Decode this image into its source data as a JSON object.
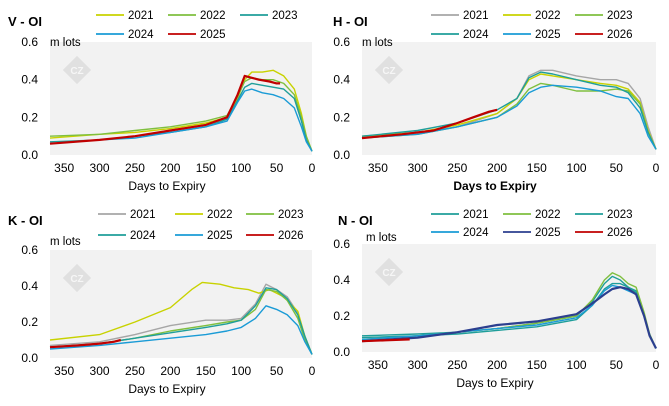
{
  "colors": {
    "2021": "#a6a6a6",
    "2022": "#c8d200",
    "2023": "#7fbf3f",
    "2024": "#1f9e9a",
    "2025": "#1a9bd6",
    "2026": "#c00000",
    "2025_v": "#c00000",
    "2025_n": "#2c3f8f",
    "2021_n": "#1f9e9a",
    "2022_n": "#7fbf3f",
    "2023_n": "#1f9e9a",
    "2024_n": "#1a9bd6",
    "plot_bg": "#f2f2f2"
  },
  "chart_data": [
    {
      "type": "line",
      "title": "V - OI",
      "ylabel": "m lots",
      "xlabel": "Days to Expiry",
      "ylim": [
        0,
        0.6
      ],
      "yticks": [
        "0.0",
        "0.2",
        "0.4",
        "0.6"
      ],
      "xlim": [
        370,
        0
      ],
      "xticks": [
        "350",
        "300",
        "250",
        "200",
        "150",
        "100",
        "50",
        "0"
      ],
      "legend": [
        "2021",
        "2022",
        "2023",
        "2024",
        "2025"
      ],
      "series": [
        {
          "name": "2021",
          "color": "#c8d200",
          "x": [
            370,
            300,
            250,
            200,
            150,
            120,
            105,
            95,
            85,
            70,
            55,
            40,
            25,
            15,
            8,
            0
          ],
          "y": [
            0.09,
            0.11,
            0.12,
            0.14,
            0.17,
            0.2,
            0.3,
            0.4,
            0.44,
            0.44,
            0.45,
            0.42,
            0.35,
            0.22,
            0.1,
            0.02
          ]
        },
        {
          "name": "2022",
          "color": "#7fbf3f",
          "x": [
            370,
            300,
            250,
            200,
            150,
            120,
            105,
            95,
            85,
            70,
            55,
            40,
            25,
            15,
            8,
            0
          ],
          "y": [
            0.1,
            0.11,
            0.13,
            0.15,
            0.18,
            0.21,
            0.31,
            0.39,
            0.41,
            0.4,
            0.4,
            0.38,
            0.32,
            0.2,
            0.1,
            0.02
          ]
        },
        {
          "name": "2023",
          "color": "#1f9e9a",
          "x": [
            370,
            300,
            250,
            200,
            150,
            120,
            105,
            95,
            85,
            70,
            55,
            40,
            25,
            15,
            8,
            0
          ],
          "y": [
            0.07,
            0.08,
            0.1,
            0.12,
            0.15,
            0.19,
            0.29,
            0.36,
            0.38,
            0.37,
            0.36,
            0.35,
            0.3,
            0.18,
            0.08,
            0.02
          ]
        },
        {
          "name": "2024",
          "color": "#1a9bd6",
          "x": [
            370,
            300,
            250,
            200,
            150,
            120,
            105,
            95,
            85,
            70,
            55,
            40,
            25,
            15,
            8,
            0
          ],
          "y": [
            0.06,
            0.08,
            0.09,
            0.12,
            0.15,
            0.18,
            0.28,
            0.34,
            0.35,
            0.33,
            0.32,
            0.3,
            0.25,
            0.15,
            0.07,
            0.02
          ]
        },
        {
          "name": "2025",
          "color": "#c00000",
          "x": [
            370,
            300,
            250,
            200,
            150,
            120,
            105,
            95,
            85,
            75,
            60,
            50,
            45
          ],
          "y": [
            0.06,
            0.08,
            0.1,
            0.13,
            0.16,
            0.2,
            0.32,
            0.42,
            0.41,
            0.4,
            0.39,
            0.38,
            0.38
          ]
        }
      ]
    },
    {
      "type": "line",
      "title": "H - OI",
      "ylabel": "m lots",
      "xlabel": "Days to Expiry",
      "ylim": [
        0,
        0.6
      ],
      "yticks": [
        "0.0",
        "0.2",
        "0.4",
        "0.6"
      ],
      "xlim": [
        370,
        0
      ],
      "xticks": [
        "350",
        "300",
        "250",
        "200",
        "150",
        "100",
        "50",
        "0"
      ],
      "legend": [
        "2021",
        "2022",
        "2023",
        "2024",
        "2025",
        "2026"
      ],
      "series": [
        {
          "name": "2021",
          "color": "#a6a6a6",
          "x": [
            370,
            300,
            250,
            200,
            175,
            160,
            145,
            130,
            100,
            70,
            50,
            35,
            20,
            10,
            0
          ],
          "y": [
            0.1,
            0.12,
            0.15,
            0.22,
            0.3,
            0.42,
            0.45,
            0.45,
            0.42,
            0.4,
            0.4,
            0.38,
            0.3,
            0.15,
            0.03
          ]
        },
        {
          "name": "2022",
          "color": "#c8d200",
          "x": [
            370,
            300,
            250,
            200,
            175,
            160,
            145,
            130,
            100,
            70,
            50,
            35,
            20,
            10,
            0
          ],
          "y": [
            0.1,
            0.12,
            0.16,
            0.22,
            0.3,
            0.4,
            0.43,
            0.42,
            0.4,
            0.38,
            0.37,
            0.35,
            0.28,
            0.13,
            0.03
          ]
        },
        {
          "name": "2023",
          "color": "#7fbf3f",
          "x": [
            370,
            300,
            250,
            200,
            175,
            160,
            145,
            130,
            100,
            70,
            50,
            35,
            20,
            10,
            0
          ],
          "y": [
            0.09,
            0.11,
            0.15,
            0.2,
            0.27,
            0.35,
            0.38,
            0.37,
            0.34,
            0.34,
            0.35,
            0.34,
            0.27,
            0.12,
            0.03
          ]
        },
        {
          "name": "2024",
          "color": "#1f9e9a",
          "x": [
            370,
            300,
            250,
            200,
            175,
            160,
            145,
            130,
            100,
            70,
            50,
            35,
            20,
            10,
            0
          ],
          "y": [
            0.1,
            0.13,
            0.17,
            0.24,
            0.3,
            0.41,
            0.44,
            0.43,
            0.4,
            0.37,
            0.36,
            0.33,
            0.25,
            0.12,
            0.03
          ]
        },
        {
          "name": "2025",
          "color": "#1a9bd6",
          "x": [
            370,
            300,
            250,
            200,
            175,
            160,
            145,
            130,
            100,
            70,
            50,
            35,
            20,
            10,
            0
          ],
          "y": [
            0.09,
            0.11,
            0.15,
            0.2,
            0.26,
            0.33,
            0.36,
            0.37,
            0.36,
            0.34,
            0.31,
            0.3,
            0.22,
            0.1,
            0.03
          ]
        },
        {
          "name": "2026",
          "color": "#c00000",
          "x": [
            370,
            320,
            280,
            250,
            230,
            210,
            200
          ],
          "y": [
            0.09,
            0.11,
            0.13,
            0.17,
            0.2,
            0.23,
            0.24
          ]
        }
      ]
    },
    {
      "type": "line",
      "title": "K - OI",
      "ylabel": "m lots",
      "xlabel": "Days to Expiry",
      "ylim": [
        0,
        0.6
      ],
      "yticks": [
        "0.0",
        "0.2",
        "0.4",
        "0.6"
      ],
      "xlim": [
        370,
        0
      ],
      "xticks": [
        "350",
        "300",
        "250",
        "200",
        "150",
        "100",
        "50",
        "0"
      ],
      "legend": [
        "2021",
        "2022",
        "2023",
        "2024",
        "2025",
        "2026"
      ],
      "series": [
        {
          "name": "2021",
          "color": "#a6a6a6",
          "x": [
            370,
            300,
            250,
            200,
            150,
            120,
            100,
            80,
            65,
            50,
            35,
            20,
            10,
            0
          ],
          "y": [
            0.07,
            0.09,
            0.13,
            0.18,
            0.21,
            0.21,
            0.22,
            0.3,
            0.41,
            0.38,
            0.34,
            0.25,
            0.12,
            0.02
          ]
        },
        {
          "name": "2022",
          "color": "#c8d200",
          "x": [
            370,
            300,
            250,
            200,
            170,
            155,
            130,
            110,
            90,
            75,
            60,
            40,
            20,
            10,
            0
          ],
          "y": [
            0.1,
            0.13,
            0.2,
            0.28,
            0.38,
            0.42,
            0.41,
            0.39,
            0.38,
            0.36,
            0.38,
            0.34,
            0.26,
            0.12,
            0.02
          ]
        },
        {
          "name": "2023",
          "color": "#7fbf3f",
          "x": [
            370,
            300,
            250,
            200,
            150,
            120,
            100,
            80,
            65,
            50,
            35,
            20,
            10,
            0
          ],
          "y": [
            0.06,
            0.08,
            0.11,
            0.15,
            0.18,
            0.2,
            0.21,
            0.27,
            0.38,
            0.37,
            0.32,
            0.22,
            0.1,
            0.02
          ]
        },
        {
          "name": "2024",
          "color": "#1f9e9a",
          "x": [
            370,
            300,
            250,
            200,
            150,
            120,
            100,
            80,
            65,
            50,
            35,
            20,
            10,
            0
          ],
          "y": [
            0.06,
            0.08,
            0.11,
            0.14,
            0.17,
            0.19,
            0.21,
            0.29,
            0.39,
            0.38,
            0.33,
            0.24,
            0.12,
            0.02
          ]
        },
        {
          "name": "2025",
          "color": "#1a9bd6",
          "x": [
            370,
            300,
            250,
            200,
            150,
            120,
            100,
            80,
            65,
            50,
            35,
            20,
            10,
            0
          ],
          "y": [
            0.05,
            0.07,
            0.09,
            0.11,
            0.13,
            0.15,
            0.17,
            0.22,
            0.29,
            0.27,
            0.24,
            0.18,
            0.09,
            0.02
          ]
        },
        {
          "name": "2026",
          "color": "#c00000",
          "x": [
            370,
            330,
            300,
            280,
            270
          ],
          "y": [
            0.06,
            0.07,
            0.08,
            0.09,
            0.1
          ]
        }
      ]
    },
    {
      "type": "line",
      "title": "N - OI",
      "ylabel": "m lots",
      "xlabel": "Days to Expiry",
      "ylim": [
        0,
        0.6
      ],
      "yticks": [
        "0.0",
        "0.2",
        "0.4",
        "0.6"
      ],
      "xlim": [
        370,
        0
      ],
      "xticks": [
        "350",
        "300",
        "250",
        "200",
        "150",
        "100",
        "50",
        "0"
      ],
      "legend": [
        "2021",
        "2022",
        "2023",
        "2024",
        "2025",
        "2026"
      ],
      "series": [
        {
          "name": "2021",
          "color": "#1f9e9a",
          "x": [
            370,
            300,
            250,
            200,
            150,
            100,
            80,
            65,
            55,
            45,
            35,
            25,
            15,
            8,
            0
          ],
          "y": [
            0.09,
            0.1,
            0.11,
            0.13,
            0.16,
            0.2,
            0.28,
            0.38,
            0.42,
            0.4,
            0.36,
            0.34,
            0.2,
            0.1,
            0.02
          ]
        },
        {
          "name": "2022",
          "color": "#7fbf3f",
          "x": [
            370,
            300,
            250,
            200,
            150,
            100,
            80,
            65,
            55,
            45,
            35,
            25,
            15,
            8,
            0
          ],
          "y": [
            0.07,
            0.09,
            0.11,
            0.13,
            0.16,
            0.2,
            0.29,
            0.4,
            0.44,
            0.42,
            0.38,
            0.36,
            0.22,
            0.1,
            0.02
          ]
        },
        {
          "name": "2023",
          "color": "#1f9e9a",
          "x": [
            370,
            300,
            250,
            200,
            150,
            100,
            80,
            65,
            55,
            45,
            35,
            25,
            15,
            8,
            0
          ],
          "y": [
            0.08,
            0.09,
            0.1,
            0.12,
            0.14,
            0.18,
            0.26,
            0.35,
            0.38,
            0.38,
            0.36,
            0.33,
            0.2,
            0.09,
            0.02
          ]
        },
        {
          "name": "2024",
          "color": "#1a9bd6",
          "x": [
            370,
            300,
            250,
            200,
            150,
            100,
            80,
            65,
            55,
            45,
            35,
            25,
            15,
            8,
            0
          ],
          "y": [
            0.07,
            0.09,
            0.11,
            0.13,
            0.15,
            0.19,
            0.26,
            0.34,
            0.37,
            0.36,
            0.34,
            0.32,
            0.2,
            0.09,
            0.02
          ]
        },
        {
          "name": "2025",
          "color": "#2c3f8f",
          "x": [
            370,
            300,
            250,
            200,
            150,
            100,
            80,
            65,
            55,
            45,
            35,
            25,
            15,
            8,
            0
          ],
          "y": [
            0.06,
            0.08,
            0.11,
            0.15,
            0.17,
            0.21,
            0.27,
            0.32,
            0.35,
            0.36,
            0.35,
            0.32,
            0.2,
            0.09,
            0.02
          ]
        },
        {
          "name": "2026",
          "color": "#c00000",
          "x": [
            370,
            340,
            310
          ],
          "y": [
            0.06,
            0.065,
            0.07
          ]
        }
      ]
    }
  ]
}
